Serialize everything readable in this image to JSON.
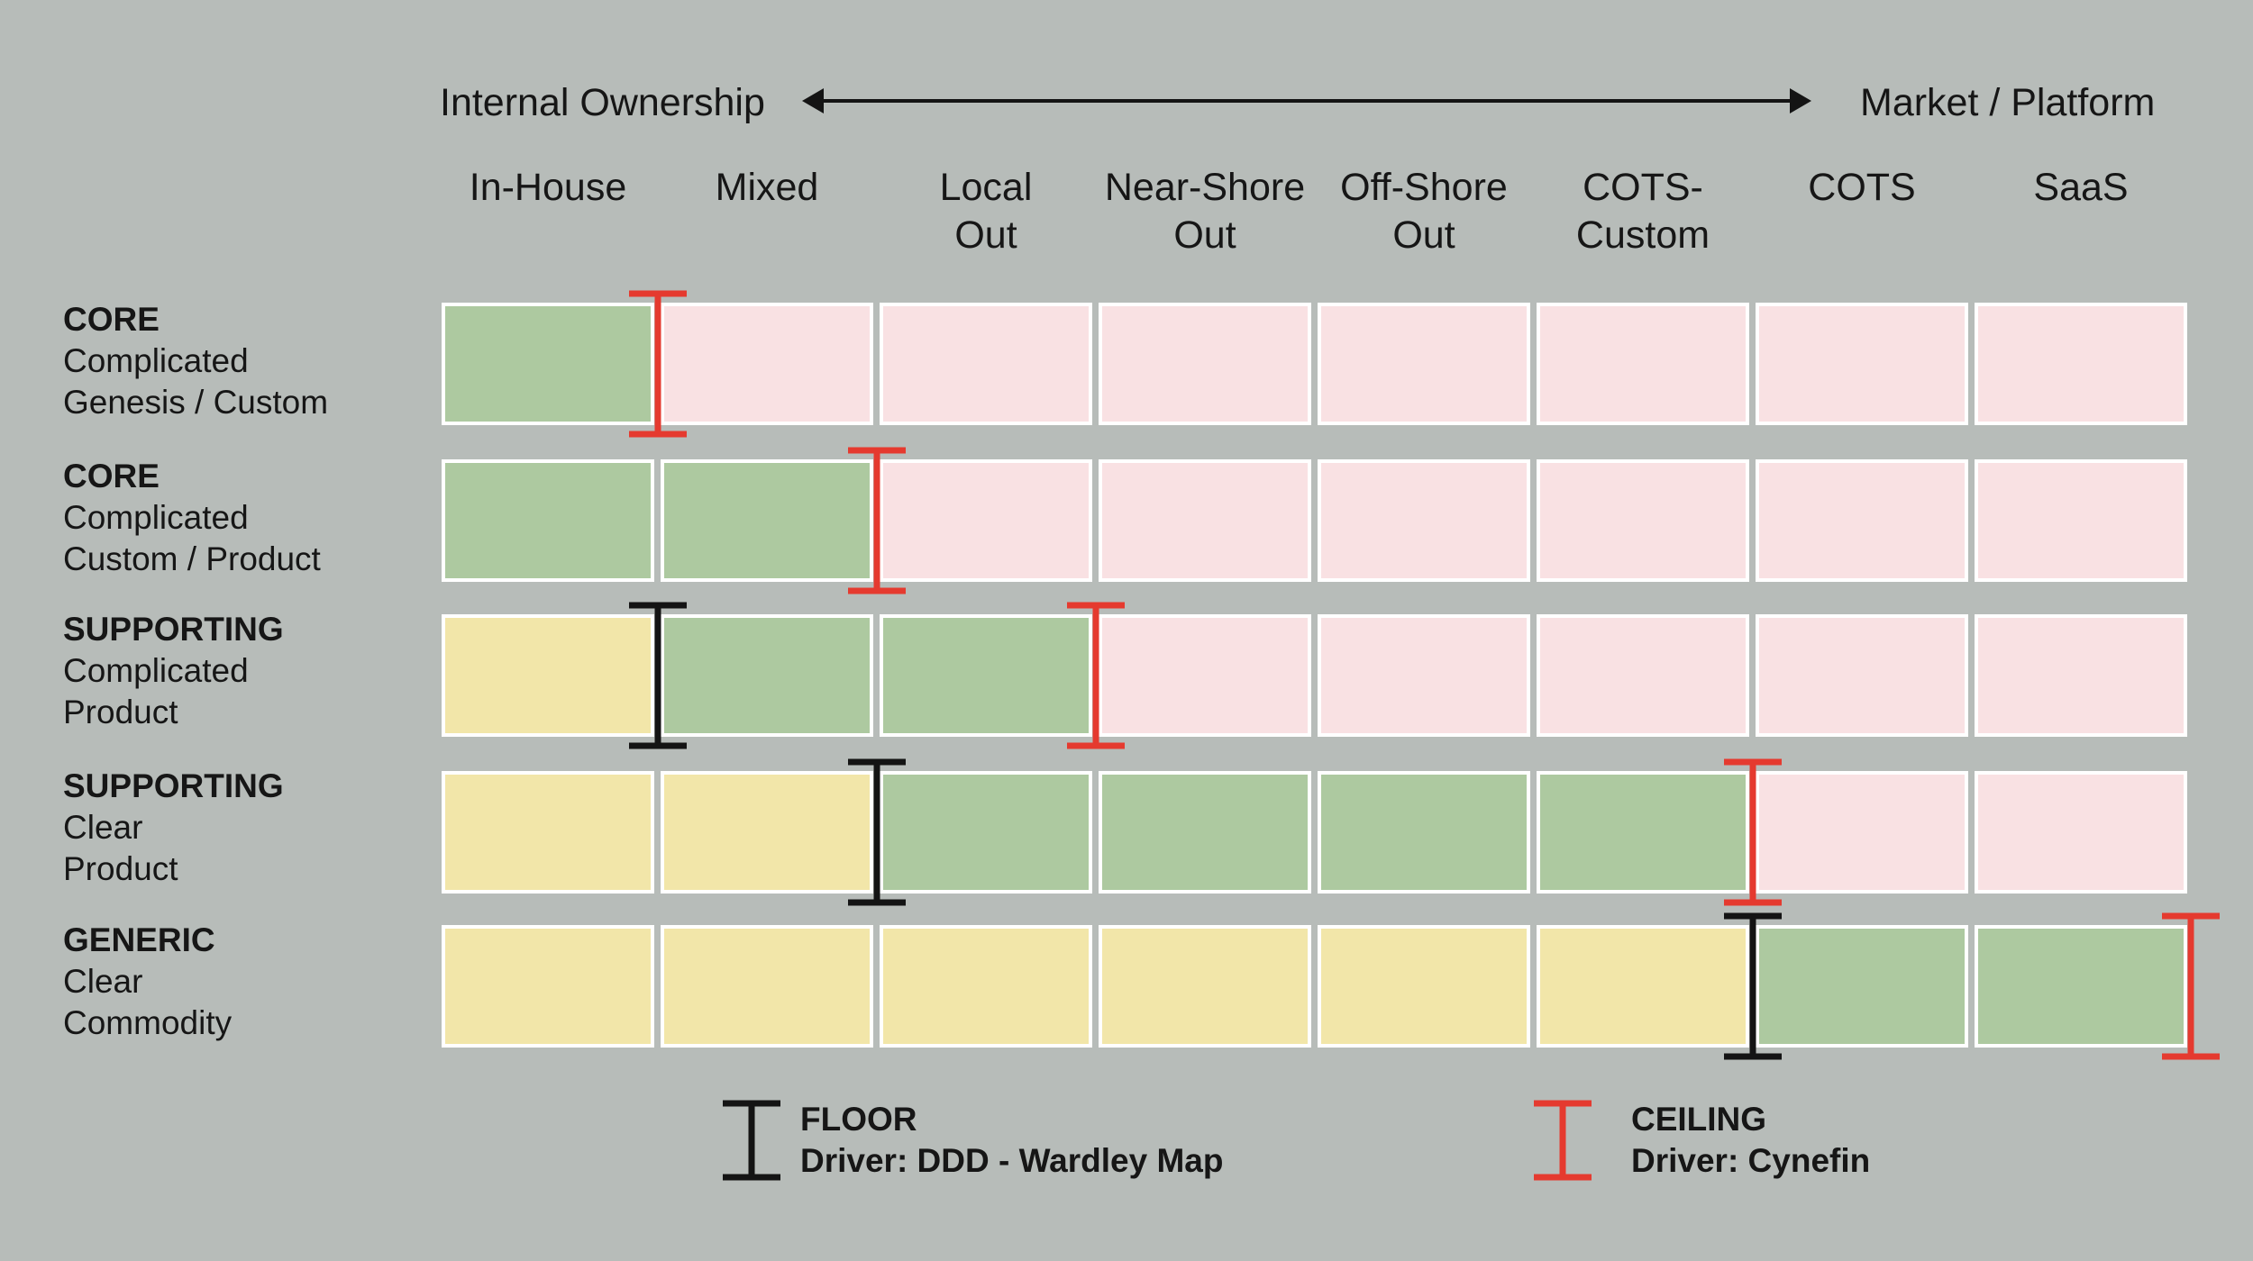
{
  "axis": {
    "left_label": "Internal Ownership",
    "right_label": "Market / Platform"
  },
  "columns": [
    {
      "line1": "In-House",
      "line2": ""
    },
    {
      "line1": "Mixed",
      "line2": ""
    },
    {
      "line1": "Local",
      "line2": "Out"
    },
    {
      "line1": "Near-Shore",
      "line2": "Out"
    },
    {
      "line1": "Off-Shore",
      "line2": "Out"
    },
    {
      "line1": "COTS-",
      "line2": "Custom"
    },
    {
      "line1": "COTS",
      "line2": ""
    },
    {
      "line1": "SaaS",
      "line2": ""
    }
  ],
  "rows": [
    {
      "category": "CORE",
      "line2": "Complicated",
      "line3": "Genesis / Custom",
      "cells": [
        "green",
        "pink",
        "pink",
        "pink",
        "pink",
        "pink",
        "pink",
        "pink"
      ],
      "floor_index": null,
      "ceiling_index": 1
    },
    {
      "category": "CORE",
      "line2": "Complicated",
      "line3": "Custom / Product",
      "cells": [
        "green",
        "green",
        "pink",
        "pink",
        "pink",
        "pink",
        "pink",
        "pink"
      ],
      "floor_index": null,
      "ceiling_index": 2
    },
    {
      "category": "SUPPORTING",
      "line2": "Complicated",
      "line3": "Product",
      "cells": [
        "yellow",
        "green",
        "green",
        "pink",
        "pink",
        "pink",
        "pink",
        "pink"
      ],
      "floor_index": 1,
      "ceiling_index": 3
    },
    {
      "category": "SUPPORTING",
      "line2": "Clear",
      "line3": "Product",
      "cells": [
        "yellow",
        "yellow",
        "green",
        "green",
        "green",
        "green",
        "pink",
        "pink"
      ],
      "floor_index": 2,
      "ceiling_index": 6
    },
    {
      "category": "GENERIC",
      "line2": "Clear",
      "line3": "Commodity",
      "cells": [
        "yellow",
        "yellow",
        "yellow",
        "yellow",
        "yellow",
        "yellow",
        "green",
        "green"
      ],
      "floor_index": 6,
      "ceiling_index": 8
    }
  ],
  "legend": {
    "floor_title": "FLOOR",
    "floor_driver": "Driver: DDD - Wardley Map",
    "ceiling_title": "CEILING",
    "ceiling_driver": "Driver: Cynefin"
  },
  "colors": {
    "green": "#adc9a0",
    "pink": "#f9e1e3",
    "yellow": "#f2e6a9",
    "floor": "#141414",
    "ceiling": "#e53a2f",
    "background": "#b7bcb9"
  }
}
